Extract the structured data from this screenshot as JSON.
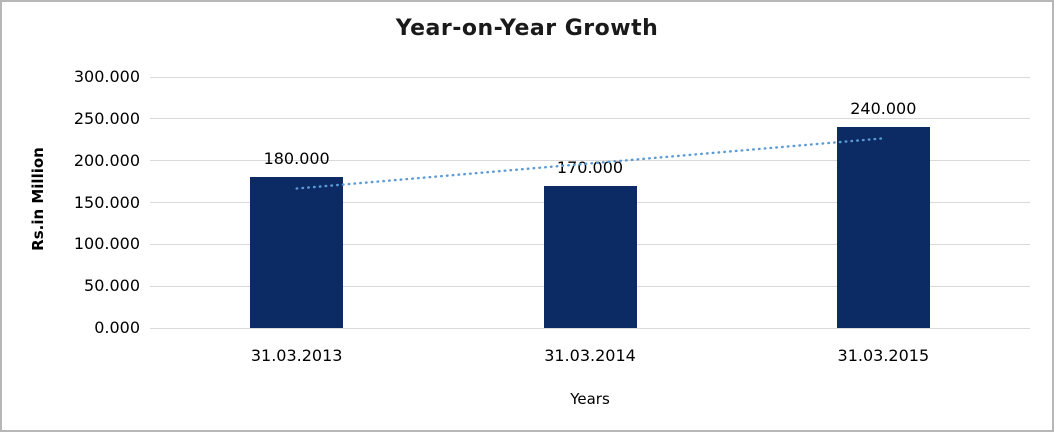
{
  "window": {
    "background": "#ffffff",
    "border_color": "#b7b7b7"
  },
  "chart_data": {
    "type": "bar",
    "title": "Year-on-Year Growth",
    "xlabel": "Years",
    "ylabel": "Rs.in Million",
    "categories": [
      "31.03.2013",
      "31.03.2014",
      "31.03.2015"
    ],
    "values": [
      180,
      170,
      240
    ],
    "value_labels": [
      "180.000",
      "170.000",
      "240.000"
    ],
    "y_tick_values": [
      0,
      50,
      100,
      150,
      200,
      250,
      300
    ],
    "y_tick_labels": [
      "0.000",
      "50.000",
      "100.000",
      "150.000",
      "200.000",
      "250.000",
      "300.000"
    ],
    "ylim": [
      0,
      300
    ],
    "grid": true,
    "legend_position": "none",
    "bar_color": "#0c2a64",
    "gridline_color": "#d9d9d9",
    "trendline": {
      "type": "linear",
      "style": "dotted",
      "color": "#5b9bd5",
      "start_value": 166.7,
      "end_value": 226.7
    }
  }
}
